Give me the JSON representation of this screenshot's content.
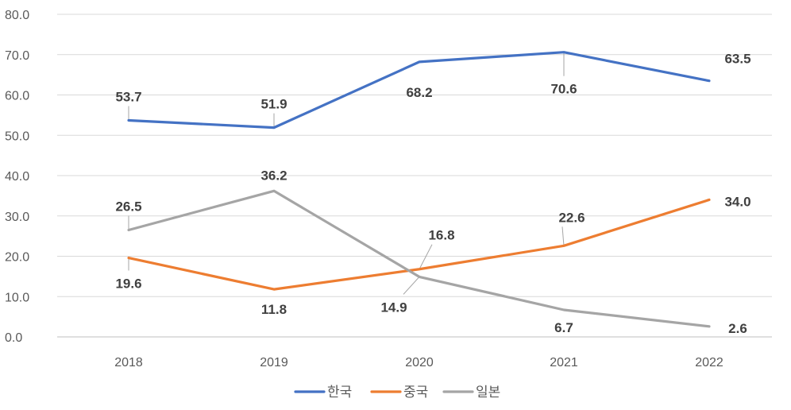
{
  "chart_data": {
    "type": "line",
    "categories": [
      "2018",
      "2019",
      "2020",
      "2021",
      "2022"
    ],
    "series": [
      {
        "name": "한국",
        "color": "#4472C4",
        "values": [
          53.7,
          51.9,
          68.2,
          70.6,
          63.5
        ],
        "labels": [
          "53.7",
          "51.9",
          "68.2",
          "70.6",
          "63.5"
        ]
      },
      {
        "name": "중국",
        "color": "#ED7D31",
        "values": [
          19.6,
          11.8,
          16.8,
          22.6,
          34.0
        ],
        "labels": [
          "19.6",
          "11.8",
          "16.8",
          "22.6",
          "34.0"
        ]
      },
      {
        "name": "일본",
        "color": "#A5A5A5",
        "values": [
          26.5,
          36.2,
          14.9,
          6.7,
          2.6
        ],
        "labels": [
          "26.5",
          "36.2",
          "14.9",
          "6.7",
          "2.6"
        ]
      }
    ],
    "yticks": [
      "0.0",
      "10.0",
      "20.0",
      "30.0",
      "40.0",
      "50.0",
      "60.0",
      "70.0",
      "80.0"
    ],
    "ylim": [
      0,
      80
    ],
    "grid": true,
    "legend_position": "bottom",
    "title": "",
    "xlabel": "",
    "ylabel": ""
  }
}
